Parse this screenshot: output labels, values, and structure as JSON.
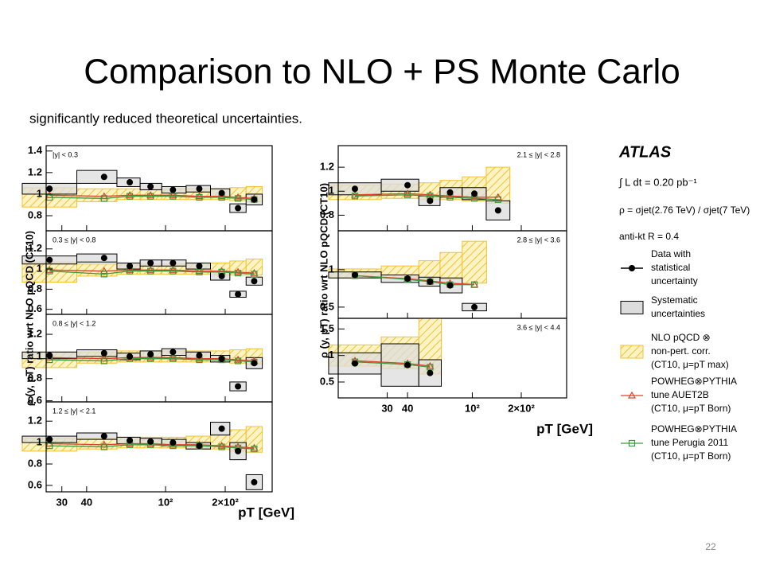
{
  "slide": {
    "title": "Comparison to NLO + PS Monte Carlo",
    "subtitle": "significantly reduced theoretical uncertainties.",
    "page": 22
  },
  "style": {
    "data": "#000000",
    "syst": "#dcdcdc",
    "nlo": "#f2c230",
    "auet2b": "#e0402a",
    "perugia": "#3c9a3c"
  },
  "chart_data": [
    {
      "type": "scatter",
      "xlog": true,
      "xlabel": "pT [GeV]",
      "ylabel": "ρ (y, pT) ratio wrt NLO pQCD (CT10)",
      "xlim": [
        25,
        345
      ],
      "xticks": [
        30,
        40,
        {
          "value": 100,
          "label": "10²"
        },
        {
          "value": 200,
          "label": "2×10²"
        }
      ],
      "panels": [
        {
          "title": "|y| < 0.3",
          "ylim": [
            0.66,
            1.45
          ],
          "yticks": [
            0.8,
            1,
            1.2,
            1.4
          ],
          "x": [
            26,
            49,
            66,
            84,
            109,
            148,
            192,
            232,
            280
          ],
          "values": [
            1.05,
            1.16,
            1.11,
            1.07,
            1.04,
            1.05,
            1.01,
            0.87,
            0.95
          ],
          "errors": [
            0.05,
            0.06,
            0.04,
            0.03,
            0.03,
            0.03,
            0.04,
            0.04,
            0.05
          ],
          "nlo": [
            0.97,
            0.99,
            1.0,
            1.0,
            1.0,
            1.0,
            1.0,
            1.0,
            1.0
          ],
          "nlo_errors": [
            0.09,
            0.06,
            0.05,
            0.05,
            0.05,
            0.05,
            0.05,
            0.06,
            0.07
          ],
          "auet2b": [
            0.99,
            0.98,
            0.99,
            0.99,
            0.99,
            0.98,
            0.98,
            0.97,
            0.96
          ],
          "perugia": [
            0.97,
            0.96,
            0.98,
            0.98,
            0.98,
            0.97,
            0.97,
            0.96,
            0.95
          ]
        },
        {
          "title": "0.3 ≤ |y| < 0.8",
          "ylim": [
            0.55,
            1.38
          ],
          "yticks": [
            0.6,
            0.8,
            1,
            1.2
          ],
          "x": [
            26,
            49,
            66,
            84,
            109,
            148,
            192,
            232,
            280
          ],
          "values": [
            1.09,
            1.11,
            1.03,
            1.06,
            1.06,
            1.03,
            0.93,
            0.75,
            0.88
          ],
          "errors": [
            0.04,
            0.04,
            0.03,
            0.03,
            0.03,
            0.03,
            0.04,
            0.03,
            0.04
          ],
          "nlo": [
            0.97,
            0.99,
            1.0,
            1.0,
            1.0,
            1.0,
            1.0,
            1.01,
            1.02
          ],
          "nlo_errors": [
            0.1,
            0.06,
            0.05,
            0.05,
            0.05,
            0.05,
            0.06,
            0.07,
            0.08
          ],
          "auet2b": [
            0.99,
            0.98,
            0.99,
            0.99,
            0.99,
            0.98,
            0.98,
            0.97,
            0.96
          ],
          "perugia": [
            0.98,
            0.95,
            0.98,
            0.98,
            0.98,
            0.97,
            0.97,
            0.96,
            0.95
          ]
        },
        {
          "title": "0.8 ≤ |y| < 1.2",
          "ylim": [
            0.59,
            1.38
          ],
          "yticks": [
            0.6,
            0.8,
            1,
            1.2
          ],
          "x": [
            26,
            49,
            66,
            84,
            109,
            148,
            192,
            232,
            280
          ],
          "values": [
            1.01,
            1.03,
            1.0,
            1.02,
            1.04,
            1.01,
            0.98,
            0.73,
            0.94
          ],
          "errors": [
            0.03,
            0.03,
            0.03,
            0.03,
            0.03,
            0.03,
            0.03,
            0.04,
            0.05
          ],
          "nlo": [
            0.97,
            0.99,
            1.0,
            1.0,
            1.0,
            1.0,
            1.0,
            1.0,
            1.0
          ],
          "nlo_errors": [
            0.07,
            0.05,
            0.05,
            0.05,
            0.05,
            0.05,
            0.05,
            0.06,
            0.07
          ],
          "auet2b": [
            0.99,
            0.98,
            0.99,
            0.99,
            0.99,
            0.98,
            0.98,
            0.97,
            0.96
          ],
          "perugia": [
            0.97,
            0.96,
            0.98,
            0.98,
            0.98,
            0.97,
            0.97,
            0.96,
            0.95
          ]
        },
        {
          "title": "1.2 ≤ |y| < 2.1",
          "ylim": [
            0.54,
            1.38
          ],
          "yticks": [
            0.6,
            0.8,
            1,
            1.2
          ],
          "x": [
            26,
            49,
            66,
            84,
            109,
            148,
            192,
            232,
            280
          ],
          "values": [
            1.03,
            1.06,
            1.02,
            1.01,
            1.0,
            0.97,
            1.13,
            0.92,
            0.63
          ],
          "errors": [
            0.03,
            0.03,
            0.03,
            0.03,
            0.03,
            0.03,
            0.06,
            0.08,
            0.07
          ],
          "nlo": [
            0.98,
            0.99,
            1.0,
            1.0,
            1.0,
            1.0,
            1.01,
            1.02,
            1.03
          ],
          "nlo_errors": [
            0.06,
            0.05,
            0.05,
            0.05,
            0.05,
            0.06,
            0.07,
            0.1,
            0.12
          ],
          "auet2b": [
            0.99,
            0.98,
            0.99,
            0.99,
            0.98,
            0.98,
            0.97,
            0.96,
            0.95
          ],
          "perugia": [
            0.97,
            0.96,
            0.98,
            0.98,
            0.97,
            0.97,
            0.96,
            0.95,
            0.94
          ]
        }
      ]
    },
    {
      "type": "scatter",
      "xlog": true,
      "xlabel": "pT [GeV]",
      "ylabel": "ρ (y, pT) ratio wrt NLO pQCD (CT10)",
      "xlim": [
        15,
        380
      ],
      "xticks": [
        30,
        40,
        {
          "value": 100,
          "label": "10²"
        },
        {
          "value": 200,
          "label": "2×10²"
        }
      ],
      "panels": [
        {
          "title": "2.1 ≤ |y| < 2.8",
          "ylim": [
            0.67,
            1.38
          ],
          "yticks": [
            0.8,
            1,
            1.2
          ],
          "x": [
            19,
            40,
            55,
            73,
            103,
            144
          ],
          "values": [
            1.02,
            1.05,
            0.92,
            0.99,
            0.98,
            0.84
          ],
          "errors": [
            0.05,
            0.05,
            0.04,
            0.04,
            0.05,
            0.08
          ],
          "nlo": [
            0.99,
            1.0,
            1.0,
            1.01,
            1.02,
            1.05
          ],
          "nlo_errors": [
            0.06,
            0.06,
            0.07,
            0.08,
            0.1,
            0.15
          ],
          "auet2b": [
            0.97,
            0.98,
            0.97,
            0.96,
            0.95,
            0.95
          ],
          "perugia": [
            0.96,
            0.97,
            0.96,
            0.95,
            0.94,
            0.93
          ]
        },
        {
          "title": "2.8 ≤ |y| < 3.6",
          "ylim": [
            0.35,
            1.52
          ],
          "yticks": [
            0.5,
            1
          ],
          "x": [
            19,
            40,
            55,
            73,
            103
          ],
          "values": [
            0.93,
            0.88,
            0.84,
            0.79,
            0.5
          ],
          "errors": [
            0.04,
            0.05,
            0.06,
            0.1,
            0.05
          ],
          "nlo": [
            0.95,
            0.97,
            1.0,
            1.05,
            1.1
          ],
          "nlo_errors": [
            0.06,
            0.08,
            0.12,
            0.18,
            0.28
          ],
          "auet2b": [
            0.92,
            0.88,
            0.85,
            0.82,
            0.8
          ],
          "perugia": [
            0.92,
            0.87,
            0.84,
            0.8,
            0.8
          ]
        },
        {
          "title": "3.6 ≤ |y| < 4.4",
          "ylim": [
            0.2,
            1.7
          ],
          "yticks": [
            0.5,
            1,
            1.5
          ],
          "x": [
            19,
            40,
            55
          ],
          "values": [
            0.85,
            0.82,
            0.67
          ],
          "errors": [
            0.2,
            0.4,
            0.25
          ],
          "nlo": [
            1.0,
            1.05,
            1.2
          ],
          "nlo_errors": [
            0.2,
            0.3,
            0.55
          ],
          "auet2b": [
            0.9,
            0.85,
            0.8
          ],
          "perugia": [
            0.88,
            0.83,
            0.78
          ]
        }
      ]
    }
  ],
  "legend": {
    "experiment": "ATLAS",
    "lumi": "∫ L dt = 0.20 pb⁻¹",
    "ratio": "ρ = σjet(2.76 TeV) / σjet(7 TeV)",
    "algo": "anti-kt R = 0.4",
    "entries": [
      [
        "Data with",
        "statistical",
        "uncertainty"
      ],
      [
        "Systematic",
        "uncertainties"
      ],
      [
        "NLO pQCD ⊗",
        "non-pert. corr.",
        "(CT10, μ=pT max)"
      ],
      [
        "POWHEG⊗PYTHIA",
        "tune AUET2B",
        "(CT10, μ=pT Born)"
      ],
      [
        "POWHEG⊗PYTHIA",
        "tune Perugia 2011",
        "(CT10, μ=pT Born)"
      ]
    ]
  }
}
